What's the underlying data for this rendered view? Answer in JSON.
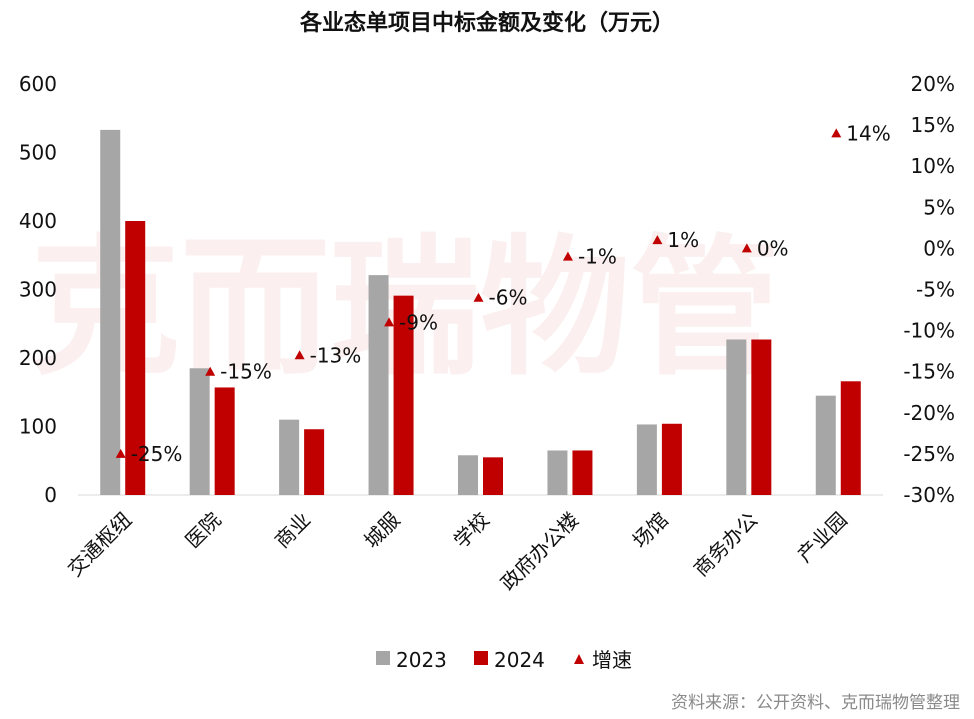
{
  "chart_data": {
    "type": "bar",
    "title": "各业态单项目中标金额及变化（万元）",
    "categories": [
      "交通枢纽",
      "医院",
      "商业",
      "城服",
      "学校",
      "政府办公楼",
      "场馆",
      "商务办公",
      "产业园"
    ],
    "series": [
      {
        "name": "2023",
        "kind": "bar",
        "axis": "left",
        "color": "#a6a6a6",
        "values": [
          533,
          185,
          110,
          321,
          58,
          65,
          103,
          227,
          145
        ]
      },
      {
        "name": "2024",
        "kind": "bar",
        "axis": "left",
        "color": "#c00000",
        "values": [
          400,
          157,
          96,
          291,
          55,
          65,
          104,
          227,
          166
        ]
      },
      {
        "name": "增速",
        "kind": "marker",
        "axis": "right",
        "color": "#c00000",
        "values": [
          -25,
          -15,
          -13,
          -9,
          -6,
          -1,
          1,
          0,
          14
        ],
        "labels": [
          "-25%",
          "-15%",
          "-13%",
          "-9%",
          "-6%",
          "-1%",
          "1%",
          "0%",
          "14%"
        ]
      }
    ],
    "y_left": {
      "min": 0,
      "max": 600,
      "step": 100,
      "ticks": [
        "0",
        "100",
        "200",
        "300",
        "400",
        "500",
        "600"
      ]
    },
    "y_right": {
      "min": -30,
      "max": 20,
      "step": 5,
      "ticks": [
        "-30%",
        "-25%",
        "-20%",
        "-15%",
        "-10%",
        "-5%",
        "0%",
        "5%",
        "10%",
        "15%",
        "20%"
      ]
    },
    "grid": false,
    "legend_position": "bottom",
    "watermark": "克而瑞物管",
    "source": "资料来源：公开资料、克而瑞物管整理"
  }
}
